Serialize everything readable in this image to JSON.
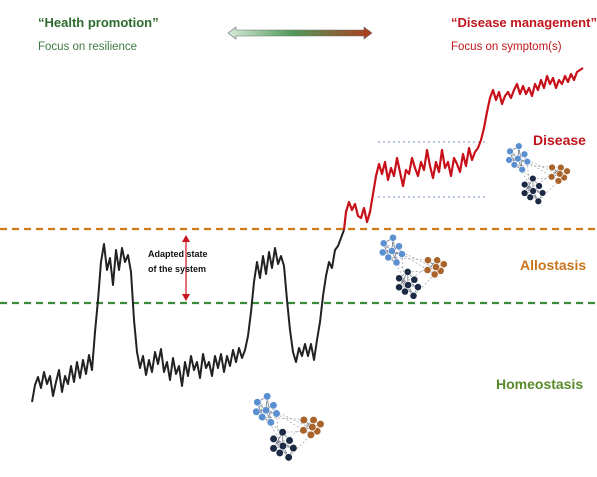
{
  "header": {
    "left_title": "“Health promotion”",
    "left_subtitle": "Focus on resilience",
    "right_title": "“Disease management”",
    "right_subtitle": "Focus on symptom(s)"
  },
  "zones": {
    "disease": "Disease",
    "allostasis": "Allostasis",
    "homeostasis": "Homeostasis"
  },
  "annotation": {
    "line1": "Adapted state",
    "line2": "of the system"
  },
  "colors": {
    "health_green": "#2e6b2e",
    "disease_red": "#c0141c",
    "allostasis_orange": "#c8741c",
    "homeostasis_green": "#5a8a2a",
    "orange_dashed": "#d07a1c",
    "green_dashed": "#3c8a3c",
    "node_light_blue": "#5a8fd0",
    "node_navy": "#1c2a44",
    "node_brown": "#a8642a"
  },
  "icons": {
    "arrow": "double-headed-gradient-arrow",
    "networks": "molecular-network-icon"
  }
}
